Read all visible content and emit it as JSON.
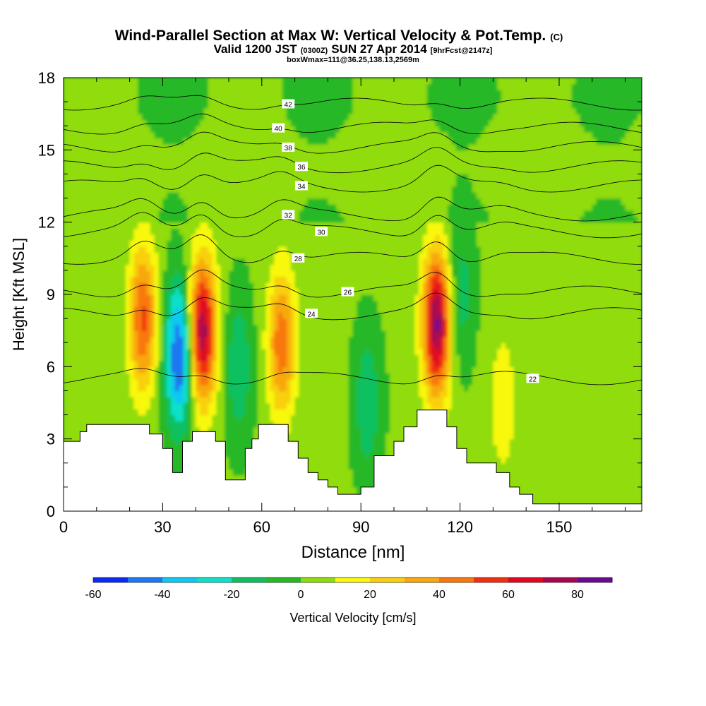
{
  "chart_data": {
    "type": "heatmap",
    "title": "Wind-Parallel Section at Max W: Vertical Velocity & Pot.Temp.",
    "title_unit": "(C)",
    "subtitle_main": "Valid 1200 JST",
    "subtitle_utc": "(0300Z)",
    "subtitle_date": "SUN 27 Apr 2014",
    "subtitle_fcst": "[9hrFcst@2147z]",
    "subtitle2": "boxWmax=111@36.25,138.13,2569m",
    "xlabel": "Distance [nm]",
    "ylabel": "Height [Kft MSL]",
    "xlim": [
      0,
      175
    ],
    "ylim": [
      0,
      18
    ],
    "x_ticks": [
      0,
      30,
      60,
      90,
      120,
      150
    ],
    "y_ticks": [
      0,
      3,
      6,
      9,
      12,
      15,
      18
    ],
    "colorbar": {
      "label": "Vertical Velocity [cm/s]",
      "ticks": [
        -60,
        -40,
        -20,
        0,
        20,
        40,
        60,
        80
      ],
      "bounds": [
        -60,
        90
      ],
      "colors": [
        "#0a2cf2",
        "#1e78f0",
        "#10c8f0",
        "#10e0c8",
        "#10c060",
        "#28b828",
        "#90dc10",
        "#f8f810",
        "#f8d010",
        "#f8a810",
        "#f87810",
        "#f03010",
        "#e00820",
        "#a80850",
        "#6a0a90"
      ]
    },
    "updrafts": [
      {
        "x": 24,
        "z": 8.0,
        "w": 50
      },
      {
        "x": 42,
        "z": 7.5,
        "w": 75
      },
      {
        "x": 66,
        "z": 7.0,
        "w": 45
      },
      {
        "x": 113,
        "z": 7.8,
        "w": 80
      },
      {
        "x": 133,
        "z": 4.5,
        "w": 15
      }
    ],
    "downdrafts": [
      {
        "x": 35,
        "z": 6.5,
        "w": -55
      },
      {
        "x": 53,
        "z": 6.0,
        "w": -20
      },
      {
        "x": 92,
        "z": 4.5,
        "w": -20
      },
      {
        "x": 120,
        "z": 9.0,
        "w": -18
      }
    ],
    "isentropes": [
      {
        "theta": 22,
        "label_x": 142,
        "label_z": 5.5
      },
      {
        "theta": 24,
        "label_x": 75,
        "label_z": 8.2
      },
      {
        "theta": 26,
        "label_x": 86,
        "label_z": 9.1
      },
      {
        "theta": 28,
        "label_x": 71,
        "label_z": 10.5
      },
      {
        "theta": 30,
        "label_x": 78,
        "label_z": 11.6
      },
      {
        "theta": 32,
        "label_x": 68,
        "label_z": 12.3
      },
      {
        "theta": 34,
        "label_x": 72,
        "label_z": 13.5
      },
      {
        "theta": 36,
        "label_x": 72,
        "label_z": 14.3
      },
      {
        "theta": 38,
        "label_x": 68,
        "label_z": 15.1
      },
      {
        "theta": 40,
        "label_x": 65,
        "label_z": 15.9
      },
      {
        "theta": 42,
        "label_x": 68,
        "label_z": 16.9
      }
    ],
    "terrain_kft": [
      [
        0,
        2.9
      ],
      [
        5,
        2.9
      ],
      [
        5,
        3.3
      ],
      [
        7,
        3.3
      ],
      [
        7,
        3.6
      ],
      [
        26,
        3.6
      ],
      [
        26,
        3.2
      ],
      [
        30,
        3.2
      ],
      [
        30,
        2.6
      ],
      [
        33,
        2.6
      ],
      [
        33,
        1.6
      ],
      [
        36,
        1.6
      ],
      [
        36,
        2.9
      ],
      [
        39,
        2.9
      ],
      [
        39,
        3.3
      ],
      [
        46,
        3.3
      ],
      [
        46,
        2.9
      ],
      [
        49,
        2.9
      ],
      [
        49,
        1.3
      ],
      [
        55,
        1.3
      ],
      [
        55,
        2.6
      ],
      [
        57,
        2.6
      ],
      [
        57,
        3.0
      ],
      [
        59,
        3.0
      ],
      [
        59,
        3.6
      ],
      [
        68,
        3.6
      ],
      [
        68,
        2.9
      ],
      [
        71,
        2.9
      ],
      [
        71,
        2.2
      ],
      [
        74,
        2.2
      ],
      [
        74,
        1.6
      ],
      [
        77,
        1.6
      ],
      [
        77,
        1.3
      ],
      [
        80,
        1.3
      ],
      [
        80,
        1.0
      ],
      [
        83,
        1.0
      ],
      [
        83,
        0.7
      ],
      [
        90,
        0.7
      ],
      [
        90,
        1.0
      ],
      [
        94,
        1.0
      ],
      [
        94,
        2.3
      ],
      [
        100,
        2.3
      ],
      [
        100,
        2.9
      ],
      [
        103,
        2.9
      ],
      [
        103,
        3.5
      ],
      [
        107,
        3.5
      ],
      [
        107,
        4.2
      ],
      [
        116,
        4.2
      ],
      [
        116,
        3.5
      ],
      [
        119,
        3.5
      ],
      [
        119,
        2.6
      ],
      [
        122,
        2.6
      ],
      [
        122,
        2.0
      ],
      [
        131,
        2.0
      ],
      [
        131,
        1.6
      ],
      [
        135,
        1.6
      ],
      [
        135,
        1.0
      ],
      [
        138,
        1.0
      ],
      [
        138,
        0.7
      ],
      [
        142,
        0.7
      ],
      [
        142,
        0.3
      ],
      [
        175,
        0.3
      ]
    ]
  }
}
